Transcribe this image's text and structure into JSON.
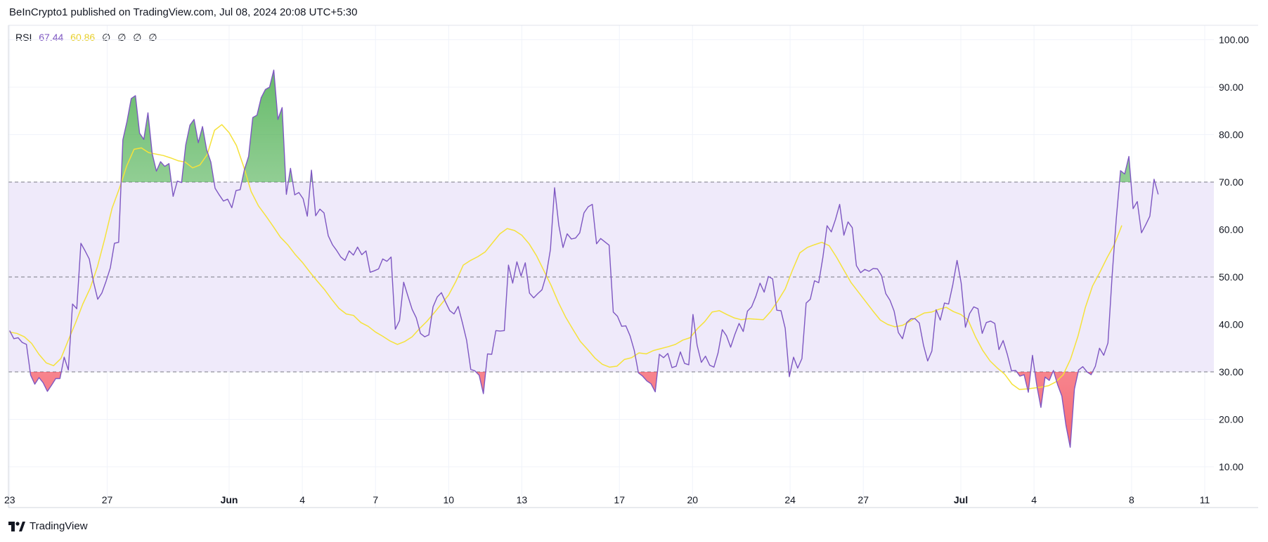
{
  "header": {
    "text": "BeInCrypto1 published on TradingView.com, Jul 08, 2024 20:08 UTC+5:30"
  },
  "legend": {
    "name": "RSI",
    "rsi_value": "67.44",
    "ma_value": "60.86",
    "placeholders": [
      "∅",
      "∅",
      "∅",
      "∅"
    ]
  },
  "footer": {
    "brand": "TradingView"
  },
  "colors": {
    "rsi_line": "#7e57c2",
    "ma_line": "#f5e23a",
    "band_fill": "#efeafa",
    "overbought_fill": "#4caf50",
    "oversold_fill": "#f23645",
    "guide_line": "#787b86",
    "grid": "#f0f3fa"
  },
  "chart_data": {
    "type": "line",
    "title": "RSI",
    "ylim": [
      5,
      103
    ],
    "y_ticks": [
      "100.00",
      "90.00",
      "80.00",
      "70.00",
      "60.00",
      "50.00",
      "40.00",
      "30.00",
      "20.00",
      "10.00"
    ],
    "y_tick_values": [
      100,
      90,
      80,
      70,
      60,
      50,
      40,
      30,
      20,
      10
    ],
    "x_ticks": [
      {
        "label": "23",
        "i": 0
      },
      {
        "label": "27",
        "i": 16
      },
      {
        "label": "Jun",
        "i": 36
      },
      {
        "label": "4",
        "i": 48
      },
      {
        "label": "7",
        "i": 60
      },
      {
        "label": "10",
        "i": 72
      },
      {
        "label": "13",
        "i": 84
      },
      {
        "label": "17",
        "i": 100
      },
      {
        "label": "20",
        "i": 112
      },
      {
        "label": "24",
        "i": 128
      },
      {
        "label": "27",
        "i": 140
      },
      {
        "label": "Jul",
        "i": 156
      },
      {
        "label": "4",
        "i": 168
      },
      {
        "label": "8",
        "i": 184
      },
      {
        "label": "11",
        "i": 196
      }
    ],
    "x_range": [
      -0.2,
      197.5
    ],
    "bands": {
      "upper": 70,
      "middle": 50,
      "lower": 30
    },
    "grid": true,
    "series": [
      {
        "name": "RSI",
        "values": [
          38.7,
          37.0,
          37.2,
          36.2,
          35.8,
          29.3,
          27.4,
          28.8,
          27.7,
          25.9,
          27.2,
          28.6,
          28.6,
          33.1,
          30.4,
          44.3,
          43.3,
          57.1,
          55.5,
          53.8,
          49.0,
          45.3,
          46.6,
          49.1,
          51.9,
          57.1,
          57.3,
          78.9,
          82.8,
          87.6,
          88.2,
          80.3,
          79.0,
          84.6,
          76.0,
          72.3,
          74.3,
          73.3,
          73.9,
          67.0,
          70.2,
          69.9,
          77.8,
          82.0,
          83.2,
          78.3,
          81.7,
          76.8,
          74.2,
          68.7,
          67.3,
          66.0,
          66.4,
          64.6,
          68.2,
          68.4,
          72.6,
          75.4,
          83.6,
          84.1,
          87.8,
          89.5,
          90.0,
          93.6,
          83.2,
          85.7,
          67.4,
          72.9,
          67.3,
          67.8,
          66.5,
          62.8,
          72.5,
          62.9,
          64.3,
          63.5,
          58.7,
          56.8,
          55.6,
          54.2,
          53.5,
          55.5,
          54.6,
          56.3,
          54.7,
          55.5,
          51.0,
          51.3,
          51.7,
          53.8,
          53.3,
          54.2,
          39.0,
          40.8,
          48.9,
          46.0,
          43.2,
          41.4,
          38.1,
          37.4,
          37.8,
          43.7,
          45.8,
          46.7,
          44.7,
          42.9,
          42.2,
          43.8,
          40.4,
          36.7,
          30.5,
          30.2,
          29.3,
          25.4,
          33.8,
          33.7,
          38.7,
          38.6,
          38.7,
          52.5,
          48.7,
          53.2,
          50.2,
          53.0,
          46.6,
          45.6,
          46.5,
          47.3,
          50.4,
          55.8,
          68.8,
          60.9,
          56.2,
          59.1,
          58.0,
          58.2,
          59.3,
          63.5,
          64.8,
          65.3,
          57.0,
          58.1,
          57.4,
          56.7,
          42.6,
          41.7,
          39.6,
          39.7,
          37.6,
          34.5,
          29.8,
          29.1,
          28.1,
          27.5,
          25.8,
          33.7,
          33.0,
          33.9,
          30.9,
          31.2,
          34.2,
          31.8,
          31.5,
          42.1,
          35.6,
          32.0,
          33.3,
          31.4,
          31.0,
          34.0,
          38.9,
          37.6,
          35.2,
          37.9,
          40.2,
          38.5,
          42.8,
          43.7,
          45.9,
          48.7,
          46.8,
          50.1,
          49.6,
          43.0,
          42.9,
          39.2,
          29.0,
          33.1,
          30.8,
          32.8,
          44.5,
          45.3,
          49.2,
          48.8,
          54.1,
          60.8,
          59.5,
          62.1,
          65.3,
          58.8,
          61.6,
          60.4,
          52.4,
          50.9,
          51.6,
          51.2,
          51.8,
          51.7,
          50.3,
          46.5,
          45.1,
          42.8,
          38.3,
          37.0,
          40.4,
          41.2,
          41.2,
          40.3,
          35.6,
          32.3,
          34.4,
          43.1,
          40.9,
          44.5,
          44.3,
          48.4,
          53.5,
          48.7,
          39.4,
          42.3,
          43.7,
          43.3,
          38.1,
          40.4,
          40.7,
          40.2,
          34.7,
          36.6,
          33.7,
          30.2,
          30.3,
          29.1,
          29.4,
          25.7,
          33.5,
          27.3,
          22.5,
          28.9,
          28.2,
          30.3,
          27.3,
          24.9,
          18.7,
          14.1,
          26.4,
          30.4,
          31.1,
          30.0,
          29.4,
          31.2,
          35.0,
          33.5,
          36.1,
          50.2,
          62.4,
          72.4,
          71.7,
          75.4,
          64.4,
          65.9,
          59.3,
          61.0,
          62.8,
          70.6,
          67.4
        ],
        "x_start": 0,
        "x_step": 0.6875
      },
      {
        "name": "RSI-based MA",
        "values": [
          38.4,
          38.1,
          37.4,
          36.0,
          33.7,
          31.9,
          31.3,
          32.8,
          36.6,
          40.3,
          44.3,
          47.6,
          52.2,
          58.1,
          64.5,
          68.7,
          73.4,
          76.9,
          77.2,
          76.2,
          75.9,
          75.6,
          75.1,
          74.5,
          74.2,
          73.0,
          73.6,
          75.8,
          80.9,
          82.1,
          80.4,
          77.7,
          73.2,
          68.0,
          65.0,
          62.9,
          60.7,
          58.4,
          56.8,
          54.8,
          53.1,
          51.1,
          49.2,
          47.4,
          45.3,
          43.4,
          42.2,
          41.9,
          40.4,
          39.6,
          38.4,
          37.5,
          36.5,
          35.8,
          36.4,
          37.4,
          39.1,
          40.6,
          42.4,
          44.3,
          46.2,
          49.1,
          52.5,
          53.5,
          54.3,
          55.3,
          57.2,
          59.1,
          60.2,
          59.8,
          58.8,
          57.0,
          54.5,
          51.4,
          48.2,
          44.6,
          41.5,
          38.9,
          36.4,
          34.7,
          32.9,
          31.6,
          31.0,
          31.2,
          32.6,
          33.0,
          34.0,
          33.8,
          34.5,
          34.9,
          35.3,
          35.8,
          36.7,
          37.2,
          39.1,
          40.6,
          42.6,
          42.9,
          42.1,
          41.4,
          41.0,
          41.2,
          41.1,
          41.0,
          42.7,
          45.0,
          47.5,
          51.5,
          55.1,
          56.2,
          56.8,
          57.3,
          56.6,
          54.2,
          51.5,
          48.8,
          46.8,
          44.8,
          42.8,
          40.9,
          40.0,
          39.5,
          39.8,
          40.6,
          41.6,
          42.4,
          42.6,
          43.2,
          43.6,
          42.7,
          42.1,
          40.9,
          37.4,
          34.5,
          32.3,
          30.8,
          29.5,
          27.4,
          26.3,
          26.4,
          26.6,
          26.8,
          27.1,
          27.9,
          29.4,
          32.7,
          37.5,
          43.5,
          48.1,
          51.0,
          54.1,
          56.9,
          60.86
        ],
        "x_start": 0,
        "x_step": 1.2
      }
    ]
  }
}
